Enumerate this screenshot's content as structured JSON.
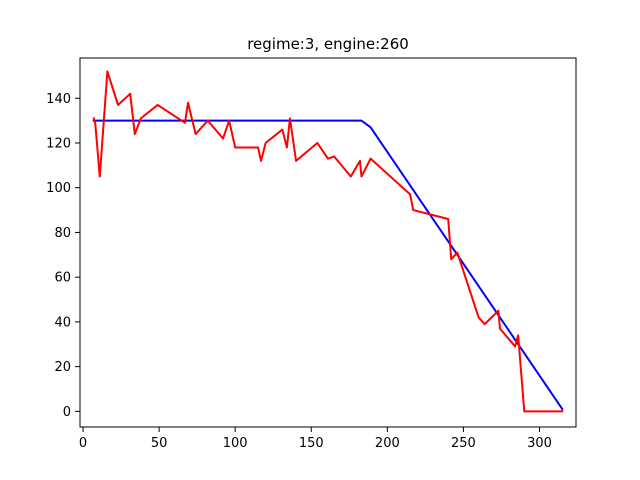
{
  "chart_data": {
    "type": "line",
    "title": "regime:3, engine:260",
    "xlabel": "",
    "ylabel": "",
    "xlim": [
      -2,
      324
    ],
    "ylim": [
      -7,
      158
    ],
    "xticks": [
      0,
      50,
      100,
      150,
      200,
      250,
      300
    ],
    "yticks": [
      0,
      20,
      40,
      60,
      80,
      100,
      120,
      140
    ],
    "grid": false,
    "legend": "none",
    "series": [
      {
        "color": "#0000ff",
        "points": [
          [
            7,
            130
          ],
          [
            183,
            130
          ],
          [
            189,
            127
          ],
          [
            315,
            1
          ]
        ]
      },
      {
        "color": "#ff0000",
        "points": [
          [
            7,
            131
          ],
          [
            8,
            129
          ],
          [
            11,
            105
          ],
          [
            16,
            152
          ],
          [
            23,
            137
          ],
          [
            31,
            142
          ],
          [
            34,
            124
          ],
          [
            38,
            131
          ],
          [
            49,
            137
          ],
          [
            67,
            129
          ],
          [
            69,
            138
          ],
          [
            74,
            124
          ],
          [
            82,
            130
          ],
          [
            92,
            122
          ],
          [
            96,
            130
          ],
          [
            100,
            118
          ],
          [
            115,
            118
          ],
          [
            117,
            112
          ],
          [
            120,
            120
          ],
          [
            131,
            126
          ],
          [
            134,
            118
          ],
          [
            136,
            131
          ],
          [
            140,
            112
          ],
          [
            154,
            120
          ],
          [
            161,
            113
          ],
          [
            165,
            114
          ],
          [
            176,
            105
          ],
          [
            182,
            112
          ],
          [
            183,
            105
          ],
          [
            189,
            113
          ],
          [
            215,
            97
          ],
          [
            217,
            90
          ],
          [
            240,
            86
          ],
          [
            242,
            68
          ],
          [
            246,
            71
          ],
          [
            260,
            42
          ],
          [
            264,
            39
          ],
          [
            273,
            45
          ],
          [
            274,
            37
          ],
          [
            284,
            29
          ],
          [
            286,
            34
          ],
          [
            290,
            0
          ],
          [
            315,
            0
          ]
        ]
      }
    ]
  }
}
